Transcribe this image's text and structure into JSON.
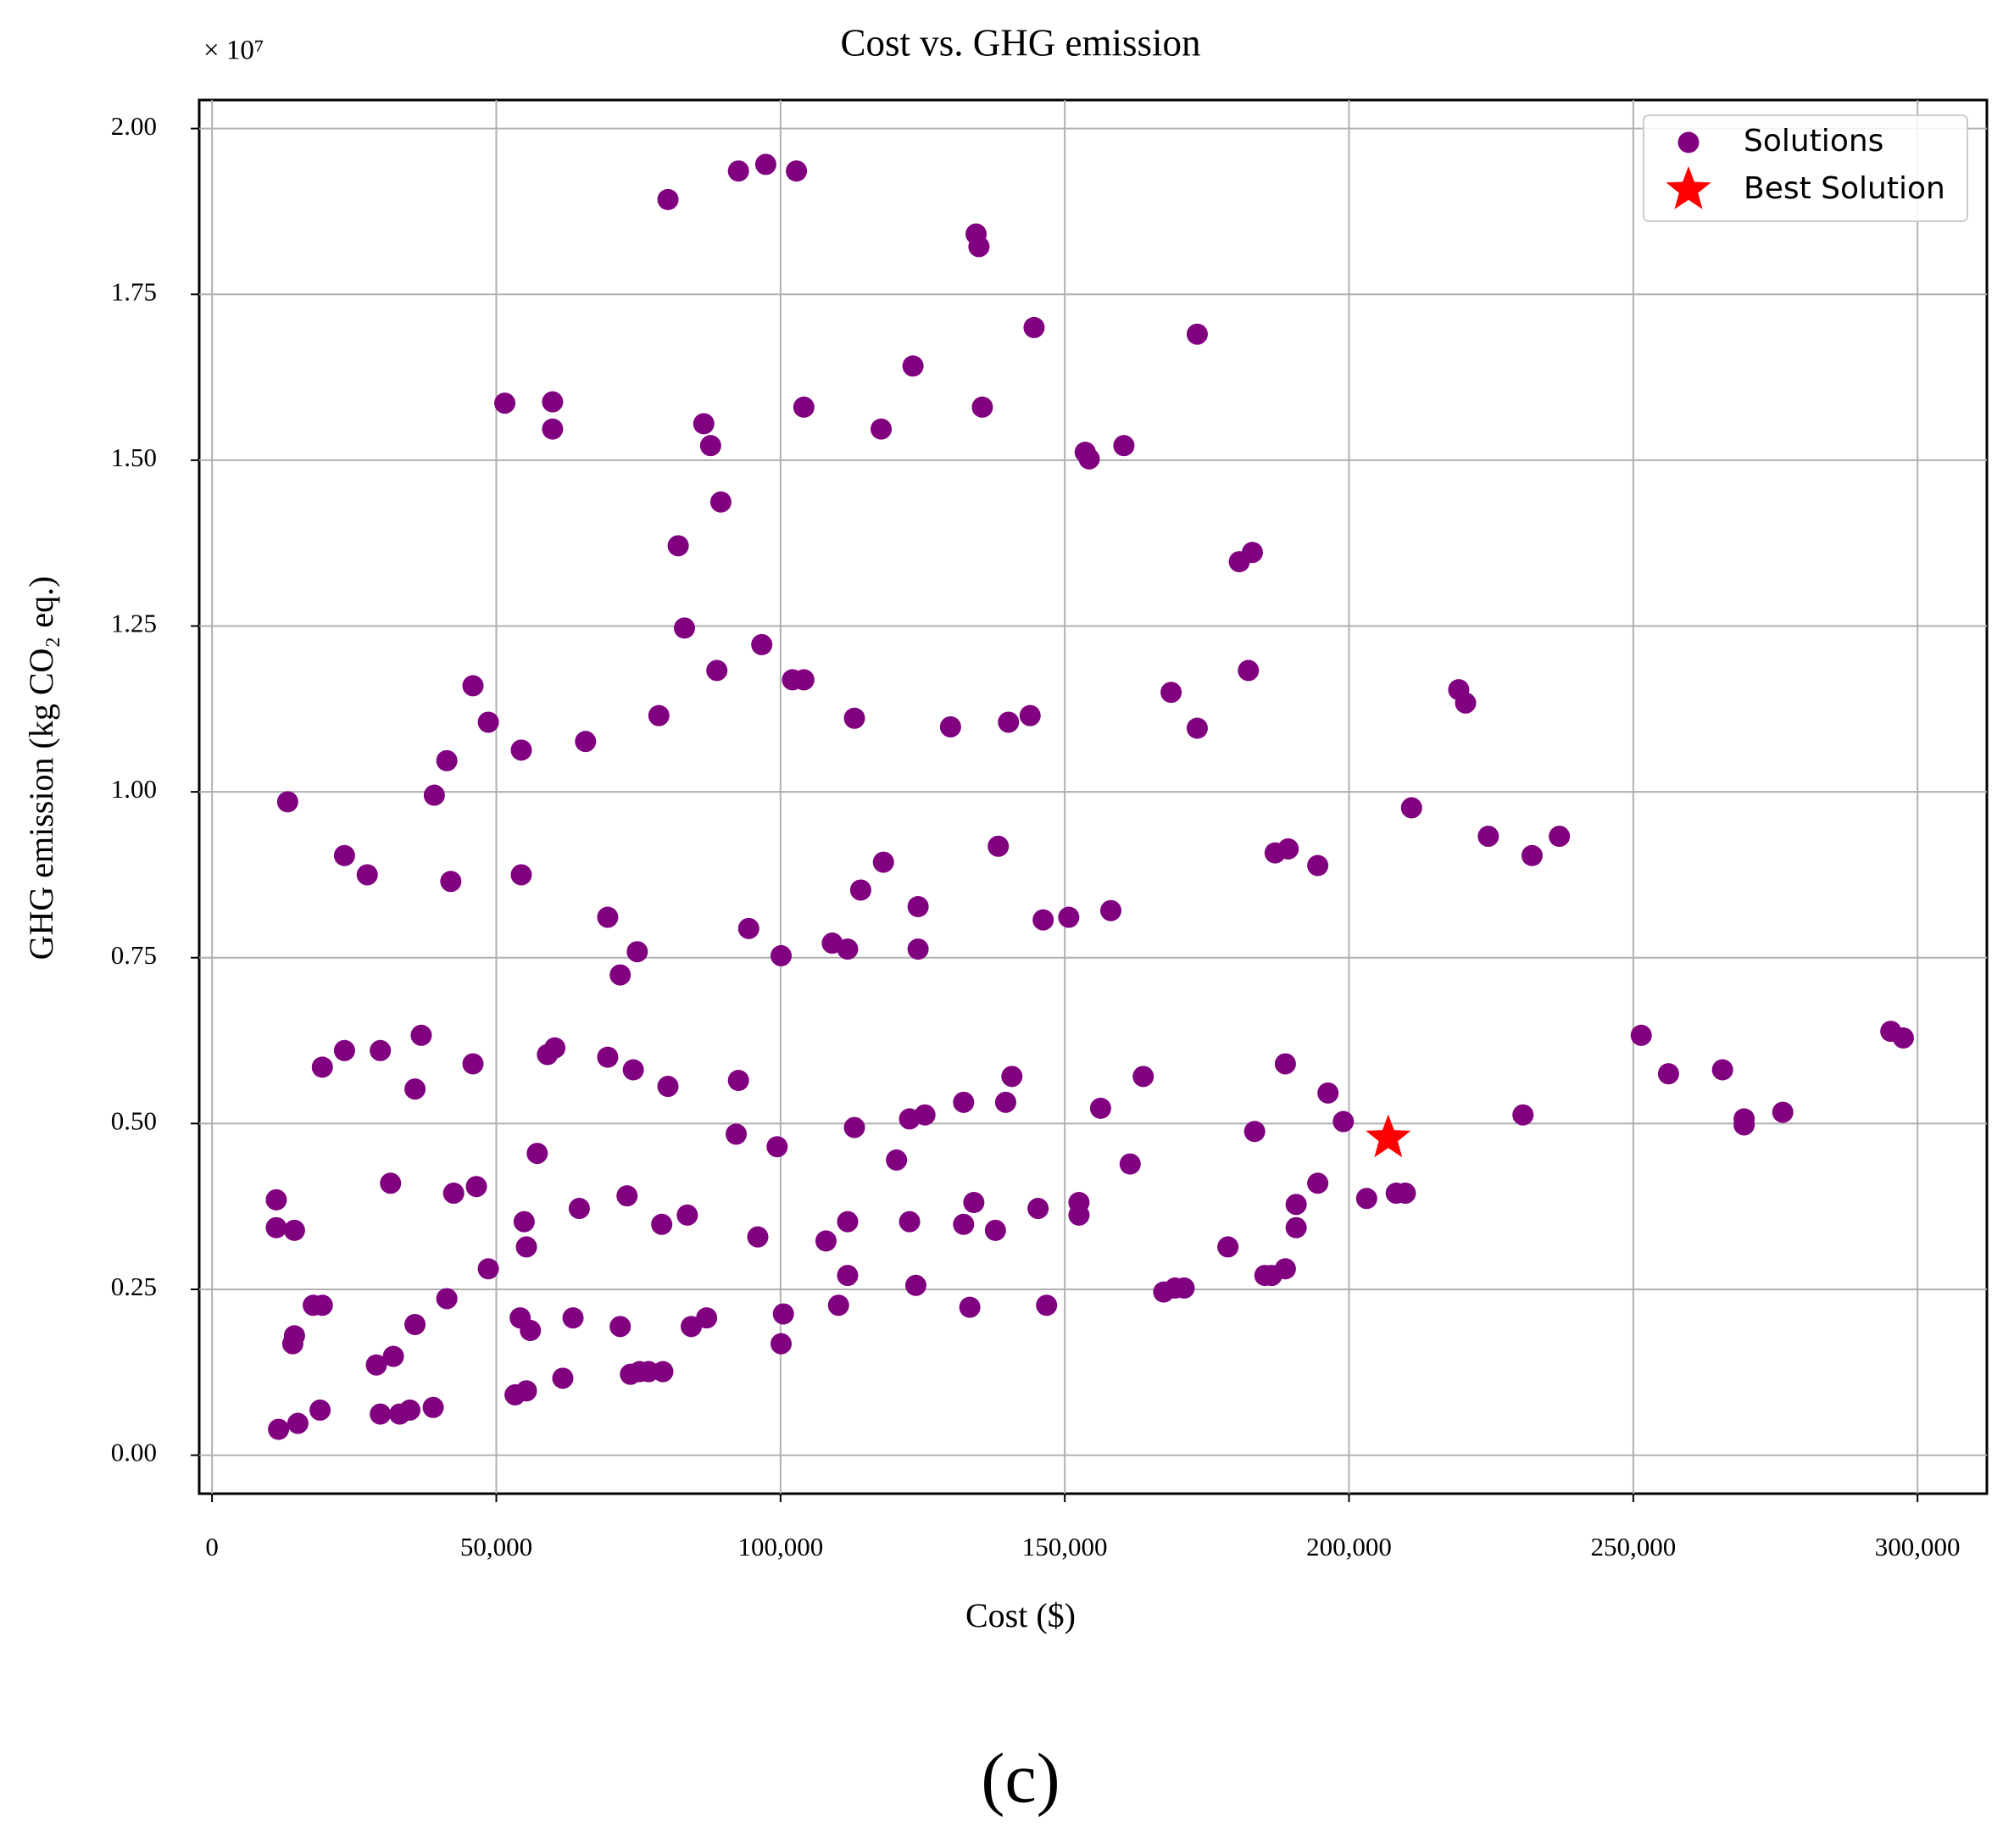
{
  "chart_data": {
    "type": "scatter",
    "title": "Cost vs. GHG emission",
    "x_label": "Cost ($)",
    "y_label": "GHG emission (kg CO₂ eq.)",
    "y_offset_label": "× 10⁷",
    "caption": "(c)",
    "xlim": [
      -2260,
      312200
    ],
    "ylim": [
      -0.058,
      2.043
    ],
    "xticks": [
      0,
      {
        "value": 50000,
        "label": "50,000"
      },
      {
        "value": 100000,
        "label": "100,000"
      },
      {
        "value": 150000,
        "label": "150,000"
      },
      {
        "value": 200000,
        "label": "200,000"
      },
      {
        "value": 250000,
        "label": "250,000"
      },
      {
        "value": 300000,
        "label": "300,000"
      }
    ],
    "yticks": [
      {
        "value": 0,
        "label": "0.00"
      },
      0.25,
      {
        "value": 0.5,
        "label": "0.50"
      },
      0.75,
      {
        "value": 1,
        "label": "1.00"
      },
      1.25,
      {
        "value": 1.5,
        "label": "1.50"
      },
      1.75,
      {
        "value": 2,
        "label": "2.00"
      }
    ],
    "grid": true,
    "legend": "upper right",
    "series": [
      {
        "name": "Solutions",
        "color": "#800080",
        "marker": "circle",
        "x": [
          13300,
          11300,
          11300,
          14500,
          14500,
          14200,
          11700,
          15100,
          19000,
          17800,
          19400,
          19400,
          23300,
          23300,
          27300,
          29600,
          31400,
          28900,
          31900,
          29600,
          33000,
          34800,
          38900,
          35700,
          36800,
          35700,
          39100,
          41300,
          42000,
          41300,
          42500,
          46500,
          45900,
          45900,
          48600,
          48600,
          51500,
          54400,
          54400,
          54900,
          55300,
          54200,
          56000,
          53300,
          55300,
          57200,
          59000,
          60300,
          59900,
          59900,
          61700,
          63500,
          64600,
          65700,
          69600,
          69600,
          71800,
          71800,
          73000,
          73600,
          74800,
          74100,
          75200,
          76800,
          78600,
          79100,
          79300,
          80200,
          80200,
          82000,
          83100,
          83600,
          84300,
          86500,
          87700,
          87000,
          88800,
          89500,
          92200,
          92600,
          92600,
          94400,
          96000,
          96700,
          97400,
          99400,
          100100,
          100100,
          100500,
          102100,
          102800,
          104100,
          104100,
          108000,
          109100,
          110200,
          111800,
          111800,
          111800,
          113000,
          113000,
          114100,
          117700,
          118100,
          120400,
          122700,
          122700,
          123300,
          123800,
          124200,
          124200,
          125400,
          129900,
          132200,
          132200,
          133300,
          134000,
          134400,
          134900,
          135500,
          137800,
          138300,
          139600,
          140100,
          140700,
          143900,
          144600,
          145300,
          146200,
          146800,
          150700,
          152500,
          152500,
          153600,
          154300,
          156300,
          158100,
          160400,
          161500,
          163800,
          167400,
          168700,
          169400,
          171000,
          173300,
          173300,
          178700,
          180700,
          183000,
          182300,
          183400,
          185200,
          186400,
          187000,
          189300,
          188800,
          188800,
          190700,
          190700,
          194500,
          194500,
          196300,
          199000,
          203100,
          208300,
          209900,
          211000,
          219300,
          220500,
          224500,
          230600,
          232200,
          237000,
          251400,
          256200,
          265700,
          269500,
          269500,
          276300,
          295300,
          297500
        ],
        "values": [
          0.985,
          0.385,
          0.343,
          0.339,
          0.18,
          0.168,
          0.039,
          0.048,
          0.068,
          0.226,
          0.226,
          0.585,
          0.61,
          0.904,
          0.875,
          0.61,
          0.41,
          0.136,
          0.149,
          0.062,
          0.062,
          0.068,
          0.072,
          0.552,
          0.633,
          0.197,
          0.995,
          1.047,
          0.865,
          0.236,
          0.395,
          0.405,
          0.59,
          1.16,
          1.105,
          0.281,
          1.586,
          1.063,
          0.875,
          0.352,
          0.314,
          0.207,
          0.188,
          0.091,
          0.097,
          0.455,
          0.604,
          0.614,
          1.588,
          1.547,
          0.116,
          0.207,
          0.372,
          1.076,
          0.811,
          0.6,
          0.194,
          0.724,
          0.391,
          0.122,
          0.759,
          0.581,
          0.126,
          0.126,
          1.115,
          0.348,
          0.126,
          0.556,
          1.893,
          1.371,
          1.247,
          0.362,
          0.194,
          1.555,
          1.522,
          0.207,
          1.183,
          1.437,
          0.484,
          0.565,
          1.936,
          0.794,
          0.329,
          1.222,
          1.946,
          0.465,
          0.753,
          0.168,
          0.213,
          1.169,
          1.936,
          1.169,
          1.58,
          0.323,
          0.772,
          0.226,
          0.763,
          0.352,
          0.271,
          1.111,
          0.494,
          0.852,
          1.547,
          0.894,
          0.445,
          0.507,
          0.352,
          1.642,
          0.256,
          0.827,
          0.763,
          0.513,
          1.098,
          0.532,
          0.348,
          0.223,
          0.381,
          1.841,
          1.822,
          1.58,
          0.339,
          0.918,
          0.532,
          1.105,
          0.571,
          1.115,
          1.7,
          0.372,
          0.807,
          0.226,
          0.811,
          0.381,
          0.362,
          1.512,
          1.502,
          0.523,
          0.821,
          1.522,
          0.439,
          0.571,
          0.246,
          1.15,
          0.252,
          0.252,
          1.69,
          1.096,
          0.314,
          1.347,
          1.361,
          1.183,
          0.488,
          0.271,
          0.271,
          0.908,
          0.914,
          0.59,
          0.281,
          0.378,
          0.343,
          0.889,
          0.41,
          0.546,
          0.503,
          0.387,
          0.395,
          0.395,
          0.976,
          1.154,
          1.134,
          0.933,
          0.513,
          0.904,
          0.933,
          0.633,
          0.575,
          0.581,
          0.507,
          0.498,
          0.517,
          0.639,
          0.629
        ]
      },
      {
        "name": "Best Solution",
        "color": "#ff0000",
        "marker": "star",
        "x": [
          206900
        ],
        "values": [
          0.478
        ]
      }
    ]
  }
}
